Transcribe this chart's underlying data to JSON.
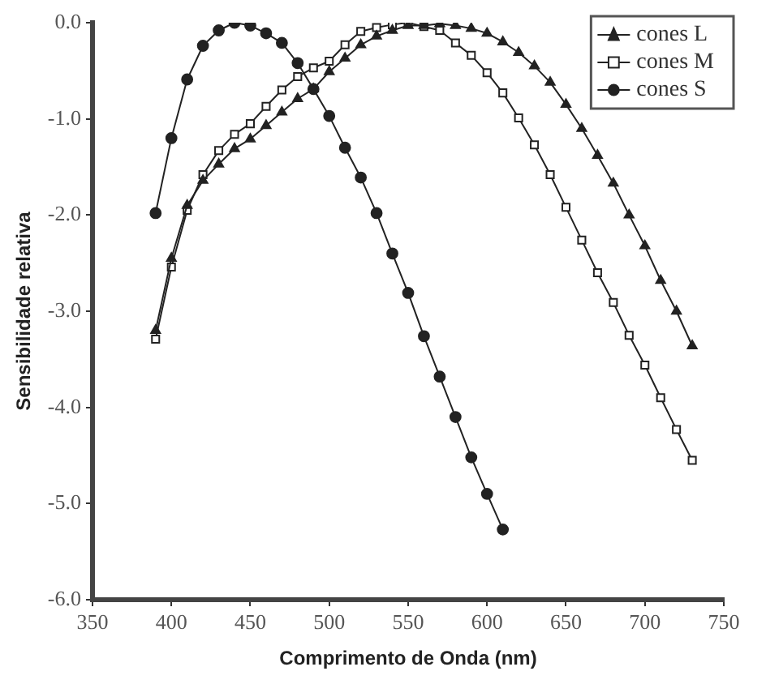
{
  "chart_data": {
    "type": "line",
    "xlabel": "Comprimento de Onda (nm)",
    "ylabel": "Sensibilidade relativa",
    "xlim": [
      350,
      750
    ],
    "xticks": [
      350,
      400,
      450,
      500,
      550,
      600,
      650,
      700,
      750
    ],
    "ylim": [
      -6,
      0
    ],
    "yticks": [
      {
        "value": -6,
        "label": "-6.0"
      },
      {
        "value": -5,
        "label": "-5.0"
      },
      {
        "value": -4,
        "label": "-4.0"
      },
      {
        "value": -3,
        "label": "-3.0"
      },
      {
        "value": -2,
        "label": "-2.0"
      },
      {
        "value": -1,
        "label": "-1.0"
      },
      {
        "value": 0,
        "label": "0.0"
      }
    ],
    "grid": false,
    "legend": "top right",
    "line_style": "solid",
    "series": [
      {
        "name": "cones L",
        "color": "#222222",
        "marker": "triangle",
        "x": [
          390,
          400,
          410,
          420,
          430,
          440,
          450,
          460,
          470,
          480,
          490,
          500,
          510,
          520,
          530,
          540,
          550,
          560,
          570,
          580,
          590,
          600,
          610,
          620,
          630,
          640,
          650,
          660,
          670,
          680,
          690,
          700,
          710,
          720,
          730
        ],
        "values": [
          -3.2,
          -2.45,
          -1.9,
          -1.64,
          -1.47,
          -1.31,
          -1.21,
          -1.07,
          -0.93,
          -0.79,
          -0.69,
          -0.51,
          -0.37,
          -0.23,
          -0.14,
          -0.08,
          -0.03,
          -0.03,
          -0.01,
          -0.03,
          -0.06,
          -0.11,
          -0.2,
          -0.31,
          -0.45,
          -0.62,
          -0.85,
          -1.1,
          -1.38,
          -1.67,
          -2.0,
          -2.32,
          -2.68,
          -3.0,
          -3.36
        ]
      },
      {
        "name": "cones M",
        "color": "#222222",
        "marker": "square",
        "x": [
          390,
          400,
          410,
          420,
          430,
          440,
          450,
          460,
          470,
          480,
          490,
          500,
          510,
          520,
          530,
          540,
          550,
          560,
          570,
          580,
          590,
          600,
          610,
          620,
          630,
          640,
          650,
          660,
          670,
          680,
          690,
          700,
          710,
          720,
          730
        ],
        "values": [
          -3.29,
          -2.54,
          -1.95,
          -1.58,
          -1.33,
          -1.16,
          -1.05,
          -0.87,
          -0.7,
          -0.56,
          -0.47,
          -0.4,
          -0.23,
          -0.09,
          -0.05,
          -0.02,
          0.0,
          -0.04,
          -0.08,
          -0.21,
          -0.34,
          -0.52,
          -0.73,
          -0.99,
          -1.27,
          -1.58,
          -1.92,
          -2.26,
          -2.6,
          -2.91,
          -3.25,
          -3.56,
          -3.9,
          -4.23,
          -4.55
        ]
      },
      {
        "name": "cones S",
        "color": "#222222",
        "marker": "circle",
        "x": [
          390,
          400,
          410,
          420,
          430,
          440,
          450,
          460,
          470,
          480,
          490,
          500,
          510,
          520,
          530,
          540,
          550,
          560,
          570,
          580,
          590,
          600,
          610
        ],
        "values": [
          -1.98,
          -1.2,
          -0.59,
          -0.24,
          -0.08,
          0.0,
          -0.03,
          -0.11,
          -0.21,
          -0.42,
          -0.69,
          -0.97,
          -1.3,
          -1.61,
          -1.98,
          -2.4,
          -2.81,
          -3.26,
          -3.68,
          -4.1,
          -4.52,
          -4.9,
          -5.27
        ]
      }
    ]
  }
}
